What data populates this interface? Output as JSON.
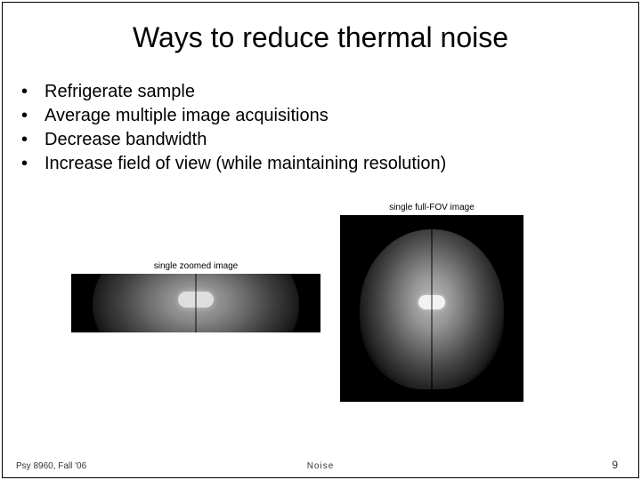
{
  "title": "Ways to reduce thermal noise",
  "bullets": [
    "Refrigerate sample",
    "Average multiple image acquisitions",
    "Decrease bandwidth",
    "Increase field of view (while maintaining resolution)"
  ],
  "figures": {
    "full": {
      "caption": "single full-FOV image"
    },
    "zoom": {
      "caption": "single zoomed image"
    }
  },
  "footer": {
    "left": "Psy 8960, Fall '06",
    "center": "Noise",
    "page": "9"
  },
  "colors": {
    "text": "#000000",
    "background": "#ffffff",
    "mri_bg": "#000000"
  }
}
